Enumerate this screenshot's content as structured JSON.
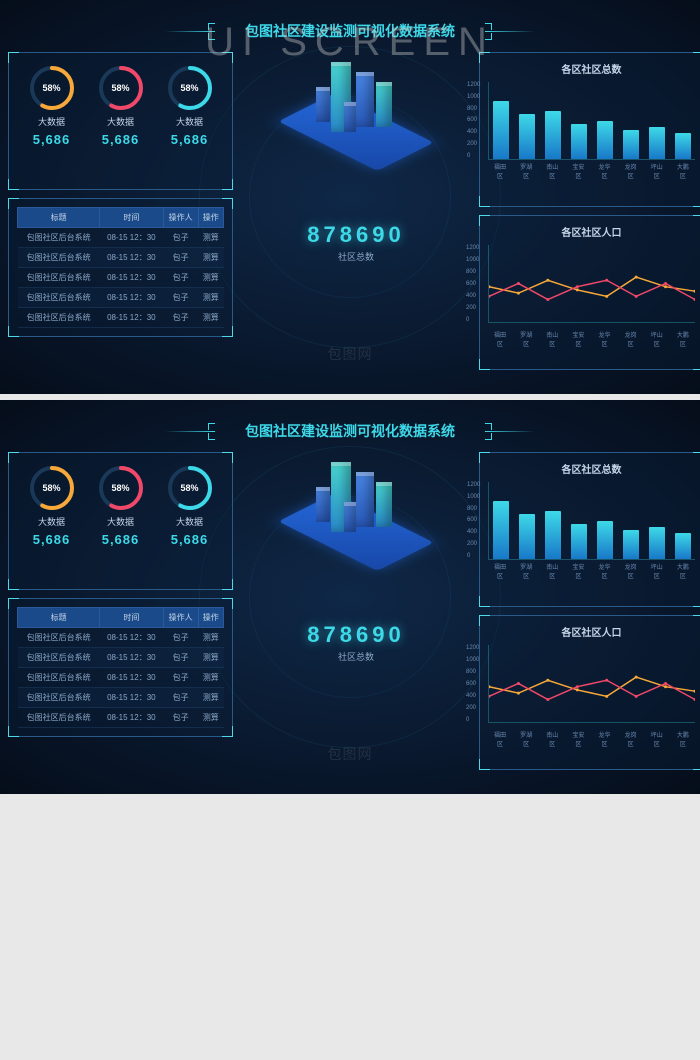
{
  "watermark_top": "UI SCREEN",
  "watermark_inner": "包图网",
  "header": {
    "title": "包图社区建设监测可视化数据系统"
  },
  "gauges": [
    {
      "pct": "58%",
      "label": "大数据",
      "value": "5,686",
      "color": "#f8a838"
    },
    {
      "pct": "58%",
      "label": "大数据",
      "value": "5,686",
      "color": "#f04868"
    },
    {
      "pct": "58%",
      "label": "大数据",
      "value": "5,686",
      "color": "#3dd9e8"
    }
  ],
  "table": {
    "headers": [
      "标题",
      "时间",
      "操作人",
      "操作"
    ],
    "rows": [
      [
        "包图社区后台系统",
        "08-15 12：30",
        "包子",
        "测算"
      ],
      [
        "包图社区后台系统",
        "08-15 12：30",
        "包子",
        "测算"
      ],
      [
        "包图社区后台系统",
        "08-15 12：30",
        "包子",
        "测算"
      ],
      [
        "包图社区后台系统",
        "08-15 12：30",
        "包子",
        "测算"
      ],
      [
        "包图社区后台系统",
        "08-15 12：30",
        "包子",
        "测算"
      ]
    ]
  },
  "center": {
    "big_number": "878690",
    "big_label": "社区总数"
  },
  "bar_chart": {
    "title": "各区社区总数",
    "y_ticks": [
      "1200",
      "1000",
      "800",
      "600",
      "400",
      "200",
      "0"
    ],
    "categories": [
      "福田区",
      "罗湖区",
      "南山区",
      "宝安区",
      "龙华区",
      "龙岗区",
      "坪山区",
      "大鹏区"
    ],
    "values": [
      900,
      700,
      750,
      550,
      600,
      450,
      500,
      400
    ],
    "ymax": 1200,
    "bar_gradient": [
      "#3dd9e8",
      "#1878c8"
    ]
  },
  "line_chart": {
    "title": "各区社区人口",
    "y_ticks": [
      "1200",
      "1000",
      "800",
      "600",
      "400",
      "200",
      "0"
    ],
    "categories": [
      "福田区",
      "罗湖区",
      "南山区",
      "宝安区",
      "龙华区",
      "龙岗区",
      "坪山区",
      "大鹏区"
    ],
    "series": [
      {
        "color": "#f8a838",
        "values": [
          550,
          450,
          650,
          500,
          400,
          700,
          550,
          480
        ]
      },
      {
        "color": "#f04868",
        "values": [
          400,
          600,
          350,
          550,
          650,
          400,
          600,
          350
        ]
      }
    ],
    "ymax": 1200
  },
  "colors": {
    "accent": "#3dd9e8",
    "bg_dark": "#081528",
    "border": "#2a5a8a"
  }
}
